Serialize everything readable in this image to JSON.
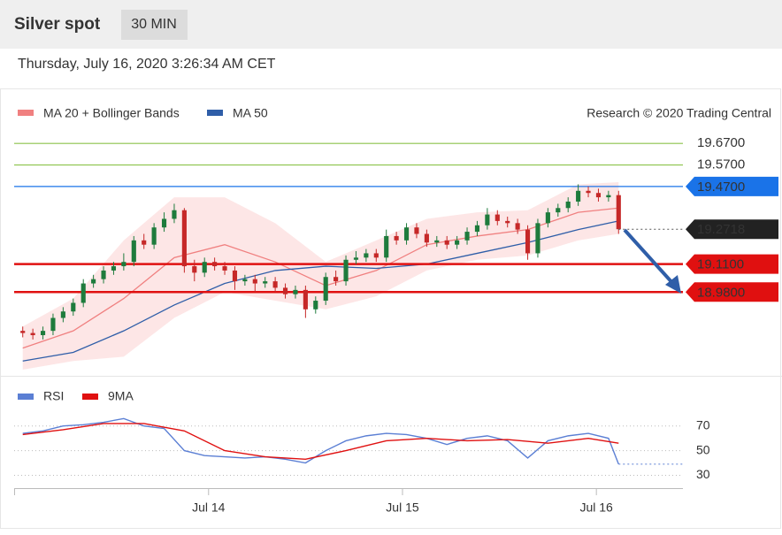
{
  "header": {
    "title": "Silver spot",
    "interval": "30 MIN",
    "timestamp": "Thursday, July 16, 2020 3:26:34 AM CET",
    "credit": "Research © 2020 Trading Central"
  },
  "chart_data": [
    {
      "type": "candlestick",
      "up_color": "#1e7b3c",
      "down_color": "#c62828",
      "xlim": [
        -0.5,
        59.5
      ],
      "ylim": [
        18.62,
        19.72
      ],
      "open": [
        18.8,
        18.79,
        18.78,
        18.8,
        18.86,
        18.89,
        18.93,
        19.02,
        19.04,
        19.08,
        19.1,
        19.12,
        19.22,
        19.2,
        19.28,
        19.32,
        19.36,
        19.1,
        19.07,
        19.12,
        19.1,
        19.08,
        19.03,
        19.04,
        19.02,
        19.03,
        19.0,
        18.97,
        18.99,
        18.9,
        18.94,
        19.05,
        19.03,
        19.13,
        19.14,
        19.16,
        19.14,
        19.24,
        19.22,
        19.28,
        19.25,
        19.21,
        19.22,
        19.2,
        19.22,
        19.26,
        19.29,
        19.34,
        19.31,
        19.3,
        19.27,
        19.16,
        19.3,
        19.35,
        19.37,
        19.4,
        19.45,
        19.44,
        19.42,
        19.43
      ],
      "high": [
        18.82,
        18.81,
        18.82,
        18.88,
        18.91,
        18.95,
        19.04,
        19.06,
        19.1,
        19.12,
        19.16,
        19.24,
        19.25,
        19.3,
        19.35,
        19.39,
        19.37,
        19.13,
        19.14,
        19.14,
        19.12,
        19.1,
        19.06,
        19.06,
        19.05,
        19.05,
        19.02,
        19.01,
        19.01,
        18.96,
        19.07,
        19.08,
        19.15,
        19.17,
        19.18,
        19.18,
        19.27,
        19.26,
        19.3,
        19.3,
        19.27,
        19.24,
        19.24,
        19.24,
        19.28,
        19.31,
        19.37,
        19.36,
        19.33,
        19.32,
        19.29,
        19.32,
        19.37,
        19.39,
        19.42,
        19.48,
        19.47,
        19.46,
        19.45,
        19.45
      ],
      "low": [
        18.77,
        18.76,
        18.76,
        18.78,
        18.84,
        18.87,
        18.91,
        19.0,
        19.02,
        19.06,
        19.08,
        19.1,
        19.18,
        19.18,
        19.26,
        19.3,
        19.07,
        19.03,
        19.05,
        19.08,
        19.06,
        18.99,
        19.01,
        18.98,
        19.0,
        18.98,
        18.95,
        18.95,
        18.86,
        18.88,
        18.92,
        19.01,
        19.01,
        19.11,
        19.12,
        19.12,
        19.12,
        19.2,
        19.2,
        19.23,
        19.19,
        19.19,
        19.18,
        19.18,
        19.2,
        19.24,
        19.27,
        19.29,
        19.28,
        19.25,
        19.13,
        19.14,
        19.28,
        19.33,
        19.35,
        19.38,
        19.42,
        19.4,
        19.4,
        19.25
      ],
      "close": [
        18.79,
        18.78,
        18.8,
        18.86,
        18.89,
        18.93,
        19.02,
        19.04,
        19.08,
        19.1,
        19.12,
        19.22,
        19.2,
        19.28,
        19.32,
        19.36,
        19.1,
        19.07,
        19.12,
        19.1,
        19.08,
        19.03,
        19.04,
        19.02,
        19.03,
        19.0,
        18.97,
        18.99,
        18.9,
        18.94,
        19.05,
        19.03,
        19.13,
        19.14,
        19.16,
        19.14,
        19.24,
        19.22,
        19.28,
        19.25,
        19.21,
        19.22,
        19.2,
        19.22,
        19.26,
        19.29,
        19.34,
        19.31,
        19.3,
        19.27,
        19.16,
        19.3,
        19.35,
        19.37,
        19.4,
        19.45,
        19.44,
        19.42,
        19.43,
        19.2718
      ],
      "indicator_x": [
        0,
        5,
        10,
        15,
        20,
        25,
        30,
        35,
        40,
        45,
        50,
        55,
        59
      ],
      "bands": {
        "name": "MA 20 + Bollinger Bands",
        "color": "#f08080",
        "fill": "#fde0e0",
        "ma": [
          18.72,
          18.8,
          18.95,
          19.14,
          19.2,
          19.12,
          19.01,
          19.08,
          19.2,
          19.24,
          19.27,
          19.35,
          19.37
        ],
        "upper": [
          18.82,
          18.95,
          19.22,
          19.42,
          19.42,
          19.3,
          19.12,
          19.22,
          19.32,
          19.35,
          19.36,
          19.48,
          19.49
        ],
        "lower": [
          18.62,
          18.66,
          18.68,
          18.86,
          18.98,
          18.94,
          18.9,
          18.96,
          19.08,
          19.13,
          19.15,
          19.22,
          19.25
        ]
      },
      "ma50": {
        "name": "MA 50",
        "color": "#2f5ea8",
        "values": [
          18.66,
          18.7,
          18.8,
          18.92,
          19.02,
          19.08,
          19.1,
          19.09,
          19.11,
          19.16,
          19.21,
          19.27,
          19.31
        ]
      },
      "levels": [
        {
          "value": 19.67,
          "label": "19.6700",
          "color": "#8bc34a",
          "style": "text"
        },
        {
          "value": 19.57,
          "label": "19.5700",
          "color": "#8bc34a",
          "style": "text"
        },
        {
          "value": 19.47,
          "label": "19.4700",
          "color": "#1a73e8",
          "style": "box"
        },
        {
          "value": 19.11,
          "label": "19.1100",
          "color": "#e01010",
          "style": "box"
        },
        {
          "value": 18.98,
          "label": "18.9800",
          "color": "#e01010",
          "style": "box"
        }
      ],
      "last_price": {
        "value": 19.2718,
        "label": "19.2718",
        "color": "#222222"
      }
    },
    {
      "type": "line",
      "xlim": [
        -0.5,
        59.5
      ],
      "ylim": [
        21,
        82
      ],
      "xticks": [
        {
          "value": 18.4,
          "label": "Jul 14"
        },
        {
          "value": 37.6,
          "label": "Jul 15"
        },
        {
          "value": 56.8,
          "label": "Jul 16"
        }
      ],
      "yticks": [
        70,
        50,
        30
      ],
      "series": [
        {
          "name": "RSI",
          "color": "#5b7fd4",
          "x": [
            0,
            2,
            4,
            6,
            8,
            10,
            12,
            14,
            16,
            18,
            20,
            22,
            24,
            26,
            28,
            30,
            32,
            34,
            36,
            38,
            40,
            42,
            44,
            46,
            48,
            50,
            52,
            54,
            56,
            58,
            59
          ],
          "values": [
            64,
            66,
            70,
            71,
            73,
            76,
            70,
            68,
            50,
            46,
            45,
            44,
            45,
            43,
            40,
            50,
            58,
            62,
            64,
            63,
            60,
            55,
            60,
            62,
            58,
            44,
            58,
            62,
            64,
            60,
            39
          ]
        },
        {
          "name": "9MA",
          "color": "#e01010",
          "x": [
            0,
            4,
            8,
            12,
            16,
            20,
            24,
            28,
            32,
            36,
            40,
            44,
            48,
            52,
            56,
            59
          ],
          "values": [
            63,
            67,
            72,
            72,
            66,
            50,
            45,
            43,
            50,
            58,
            60,
            58,
            59,
            56,
            60,
            56
          ]
        }
      ]
    }
  ]
}
